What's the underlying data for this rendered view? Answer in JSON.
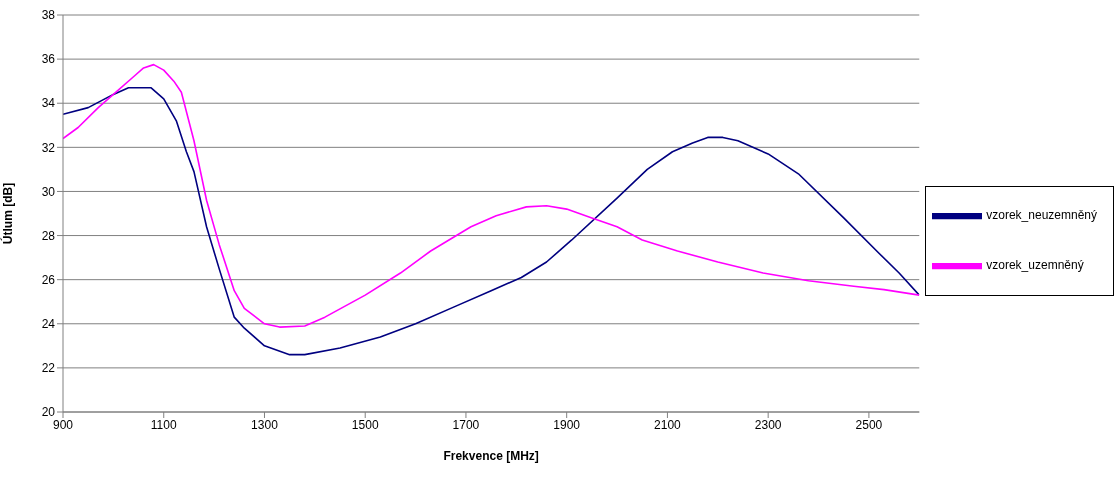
{
  "chart_data": {
    "type": "line",
    "xlabel": "Frekvence [MHz]",
    "ylabel": "Útlum [dB]",
    "xlim": [
      900,
      2600
    ],
    "xticks": [
      900,
      1100,
      1300,
      1500,
      1700,
      1900,
      2100,
      2300,
      2500
    ],
    "ylim": [
      20,
      38
    ],
    "yticks": [
      20,
      22,
      24,
      26,
      28,
      30,
      32,
      34,
      36,
      38
    ],
    "grid": "y",
    "legend": "right",
    "marker": "none",
    "line_style": "solid",
    "series": [
      {
        "name": "vzorek_neuzemněný",
        "color": "#000080",
        "x": [
          900,
          950,
          1000,
          1030,
          1075,
          1100,
          1125,
          1145,
          1160,
          1185,
          1210,
          1240,
          1260,
          1300,
          1350,
          1380,
          1450,
          1530,
          1600,
          1680,
          1750,
          1810,
          1860,
          1910,
          2000,
          2060,
          2110,
          2150,
          2180,
          2210,
          2240,
          2300,
          2360,
          2450,
          2520,
          2560,
          2600
        ],
        "values": [
          33.5,
          33.8,
          34.4,
          34.7,
          34.7,
          34.2,
          33.2,
          31.8,
          30.9,
          28.4,
          26.5,
          24.3,
          23.8,
          23.0,
          22.6,
          22.6,
          22.9,
          23.4,
          24.0,
          24.8,
          25.5,
          26.1,
          26.8,
          27.8,
          29.7,
          31.0,
          31.8,
          32.2,
          32.45,
          32.45,
          32.3,
          31.7,
          30.8,
          28.8,
          27.2,
          26.3,
          25.3
        ]
      },
      {
        "name": "vzorek_uzemněný",
        "color": "#ff00ff",
        "x": [
          900,
          930,
          970,
          1000,
          1040,
          1060,
          1080,
          1100,
          1120,
          1135,
          1160,
          1185,
          1210,
          1240,
          1260,
          1300,
          1330,
          1380,
          1420,
          1500,
          1570,
          1630,
          1710,
          1760,
          1820,
          1860,
          1900,
          1950,
          2000,
          2050,
          2120,
          2200,
          2290,
          2380,
          2470,
          2530,
          2600
        ],
        "values": [
          32.4,
          32.9,
          33.8,
          34.4,
          35.2,
          35.6,
          35.75,
          35.5,
          35.0,
          34.5,
          32.3,
          29.6,
          27.6,
          25.5,
          24.7,
          24.0,
          23.85,
          23.9,
          24.3,
          25.3,
          26.3,
          27.3,
          28.4,
          28.9,
          29.3,
          29.35,
          29.2,
          28.8,
          28.4,
          27.8,
          27.3,
          26.8,
          26.3,
          25.95,
          25.7,
          25.55,
          25.3
        ]
      }
    ]
  }
}
